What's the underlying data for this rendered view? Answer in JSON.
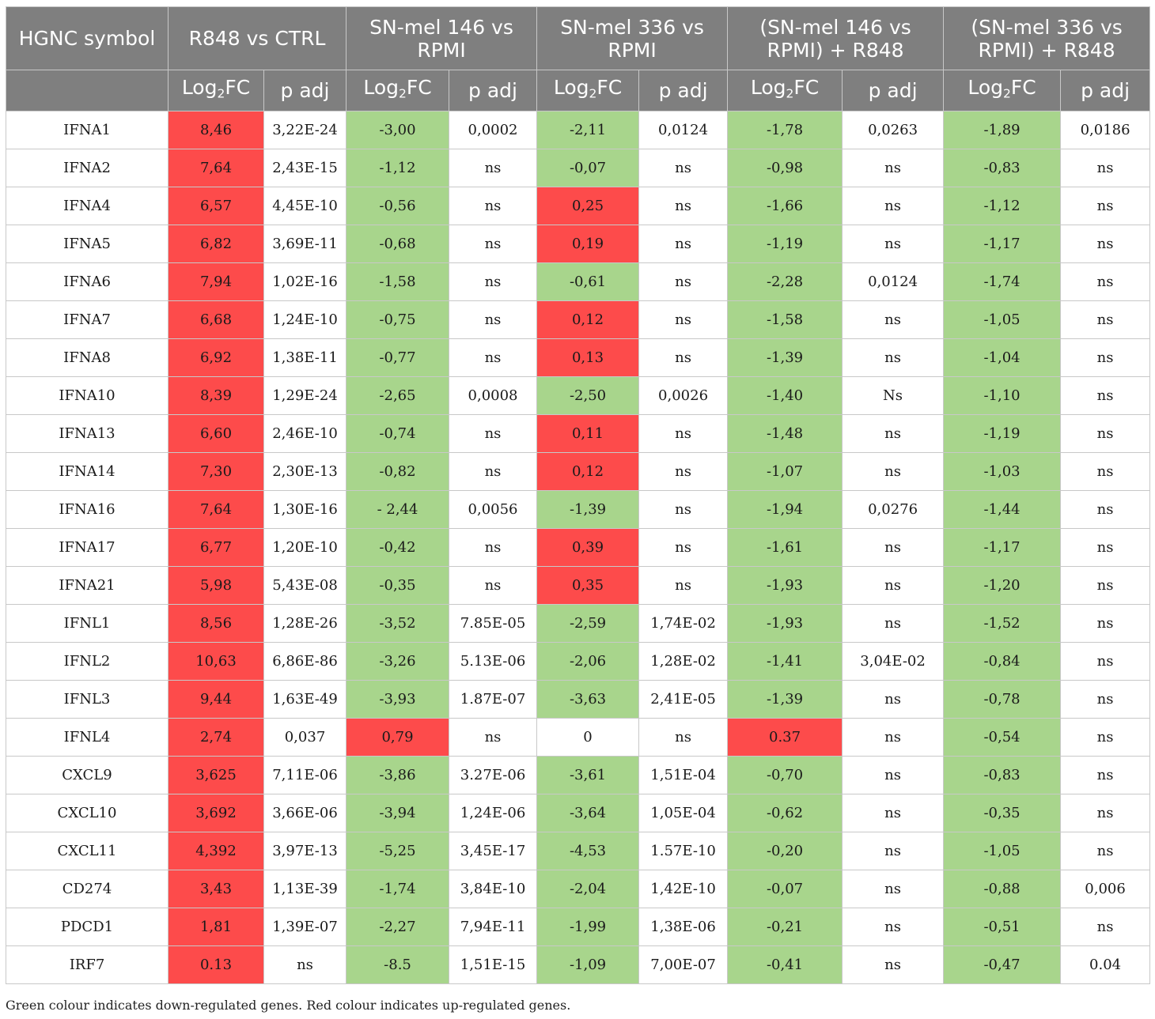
{
  "headers": {
    "symbol": "HGNC symbol",
    "groups": [
      "R848 vs CTRL",
      "SN-mel 146 vs RPMI",
      "SN-mel 336 vs RPMI",
      "(SN-mel 146 vs RPMI) + R848",
      "(SN-mel 336 vs RPMI) + R848"
    ],
    "log2fc_prefix": "Log",
    "log2fc_sub": "2",
    "log2fc_suffix": "FC",
    "padj": "p adj"
  },
  "colors": {
    "up": "#fd4b4b",
    "down": "#a8d58c",
    "header": "#7f7f7f"
  },
  "rows": [
    {
      "symbol": "IFNA1",
      "cells": [
        [
          "8,46",
          "up"
        ],
        [
          "3,22E-24",
          ""
        ],
        [
          "-3,00",
          "down"
        ],
        [
          "0,0002",
          ""
        ],
        [
          "-2,11",
          "down"
        ],
        [
          "0,0124",
          ""
        ],
        [
          "-1,78",
          "down"
        ],
        [
          "0,0263",
          ""
        ],
        [
          "-1,89",
          "down"
        ],
        [
          "0,0186",
          ""
        ]
      ]
    },
    {
      "symbol": "IFNA2",
      "cells": [
        [
          "7,64",
          "up"
        ],
        [
          "2,43E-15",
          ""
        ],
        [
          "-1,12",
          "down"
        ],
        [
          "ns",
          ""
        ],
        [
          "-0,07",
          "down"
        ],
        [
          "ns",
          ""
        ],
        [
          "-0,98",
          "down"
        ],
        [
          "ns",
          ""
        ],
        [
          "-0,83",
          "down"
        ],
        [
          "ns",
          ""
        ]
      ]
    },
    {
      "symbol": "IFNA4",
      "cells": [
        [
          "6,57",
          "up"
        ],
        [
          "4,45E-10",
          ""
        ],
        [
          "-0,56",
          "down"
        ],
        [
          "ns",
          ""
        ],
        [
          "0,25",
          "up"
        ],
        [
          "ns",
          ""
        ],
        [
          "-1,66",
          "down"
        ],
        [
          "ns",
          ""
        ],
        [
          "-1,12",
          "down"
        ],
        [
          "ns",
          ""
        ]
      ]
    },
    {
      "symbol": "IFNA5",
      "cells": [
        [
          "6,82",
          "up"
        ],
        [
          "3,69E-11",
          ""
        ],
        [
          "-0,68",
          "down"
        ],
        [
          "ns",
          ""
        ],
        [
          "0,19",
          "up"
        ],
        [
          "ns",
          ""
        ],
        [
          "-1,19",
          "down"
        ],
        [
          "ns",
          ""
        ],
        [
          "-1,17",
          "down"
        ],
        [
          "ns",
          ""
        ]
      ]
    },
    {
      "symbol": "IFNA6",
      "cells": [
        [
          "7,94",
          "up"
        ],
        [
          "1,02E-16",
          ""
        ],
        [
          "-1,58",
          "down"
        ],
        [
          "ns",
          ""
        ],
        [
          "-0,61",
          "down"
        ],
        [
          "ns",
          ""
        ],
        [
          "-2,28",
          "down"
        ],
        [
          "0,0124",
          ""
        ],
        [
          "-1,74",
          "down"
        ],
        [
          "ns",
          ""
        ]
      ]
    },
    {
      "symbol": "IFNA7",
      "cells": [
        [
          "6,68",
          "up"
        ],
        [
          "1,24E-10",
          ""
        ],
        [
          "-0,75",
          "down"
        ],
        [
          "ns",
          ""
        ],
        [
          "0,12",
          "up"
        ],
        [
          "ns",
          ""
        ],
        [
          "-1,58",
          "down"
        ],
        [
          "ns",
          ""
        ],
        [
          "-1,05",
          "down"
        ],
        [
          "ns",
          ""
        ]
      ]
    },
    {
      "symbol": "IFNA8",
      "cells": [
        [
          "6,92",
          "up"
        ],
        [
          "1,38E-11",
          ""
        ],
        [
          "-0,77",
          "down"
        ],
        [
          "ns",
          ""
        ],
        [
          "0,13",
          "up"
        ],
        [
          "ns",
          ""
        ],
        [
          "-1,39",
          "down"
        ],
        [
          "ns",
          ""
        ],
        [
          "-1,04",
          "down"
        ],
        [
          "ns",
          ""
        ]
      ]
    },
    {
      "symbol": "IFNA10",
      "cells": [
        [
          "8,39",
          "up"
        ],
        [
          "1,29E-24",
          ""
        ],
        [
          "-2,65",
          "down"
        ],
        [
          "0,0008",
          ""
        ],
        [
          "-2,50",
          "down"
        ],
        [
          "0,0026",
          ""
        ],
        [
          "-1,40",
          "down"
        ],
        [
          "Ns",
          ""
        ],
        [
          "-1,10",
          "down"
        ],
        [
          "ns",
          ""
        ]
      ]
    },
    {
      "symbol": "IFNA13",
      "cells": [
        [
          "6,60",
          "up"
        ],
        [
          "2,46E-10",
          ""
        ],
        [
          "-0,74",
          "down"
        ],
        [
          "ns",
          ""
        ],
        [
          "0,11",
          "up"
        ],
        [
          "ns",
          ""
        ],
        [
          "-1,48",
          "down"
        ],
        [
          "ns",
          ""
        ],
        [
          "-1,19",
          "down"
        ],
        [
          "ns",
          ""
        ]
      ]
    },
    {
      "symbol": "IFNA14",
      "cells": [
        [
          "7,30",
          "up"
        ],
        [
          "2,30E-13",
          ""
        ],
        [
          "-0,82",
          "down"
        ],
        [
          "ns",
          ""
        ],
        [
          "0,12",
          "up"
        ],
        [
          "ns",
          ""
        ],
        [
          "-1,07",
          "down"
        ],
        [
          "ns",
          ""
        ],
        [
          "-1,03",
          "down"
        ],
        [
          "ns",
          ""
        ]
      ]
    },
    {
      "symbol": "IFNA16",
      "cells": [
        [
          "7,64",
          "up"
        ],
        [
          "1,30E-16",
          ""
        ],
        [
          "- 2,44",
          "down"
        ],
        [
          "0,0056",
          ""
        ],
        [
          "-1,39",
          "down"
        ],
        [
          "ns",
          ""
        ],
        [
          "-1,94",
          "down"
        ],
        [
          "0,0276",
          ""
        ],
        [
          "-1,44",
          "down"
        ],
        [
          "ns",
          ""
        ]
      ]
    },
    {
      "symbol": "IFNA17",
      "cells": [
        [
          "6,77",
          "up"
        ],
        [
          "1,20E-10",
          ""
        ],
        [
          "-0,42",
          "down"
        ],
        [
          "ns",
          ""
        ],
        [
          "0,39",
          "up"
        ],
        [
          "ns",
          ""
        ],
        [
          "-1,61",
          "down"
        ],
        [
          "ns",
          ""
        ],
        [
          "-1,17",
          "down"
        ],
        [
          "ns",
          ""
        ]
      ]
    },
    {
      "symbol": "IFNA21",
      "cells": [
        [
          "5,98",
          "up"
        ],
        [
          "5,43E-08",
          ""
        ],
        [
          "-0,35",
          "down"
        ],
        [
          "ns",
          ""
        ],
        [
          "0,35",
          "up"
        ],
        [
          "ns",
          ""
        ],
        [
          "-1,93",
          "down"
        ],
        [
          "ns",
          ""
        ],
        [
          "-1,20",
          "down"
        ],
        [
          "ns",
          ""
        ]
      ]
    },
    {
      "symbol": "IFNL1",
      "cells": [
        [
          "8,56",
          "up"
        ],
        [
          "1,28E-26",
          ""
        ],
        [
          "-3,52",
          "down"
        ],
        [
          "7.85E-05",
          ""
        ],
        [
          "-2,59",
          "down"
        ],
        [
          "1,74E-02",
          ""
        ],
        [
          "-1,93",
          "down"
        ],
        [
          "ns",
          ""
        ],
        [
          "-1,52",
          "down"
        ],
        [
          "ns",
          ""
        ]
      ]
    },
    {
      "symbol": "IFNL2",
      "cells": [
        [
          "10,63",
          "up"
        ],
        [
          "6,86E-86",
          ""
        ],
        [
          "-3,26",
          "down"
        ],
        [
          "5.13E-06",
          ""
        ],
        [
          "-2,06",
          "down"
        ],
        [
          "1,28E-02",
          ""
        ],
        [
          "-1,41",
          "down"
        ],
        [
          "3,04E-02",
          ""
        ],
        [
          "-0,84",
          "down"
        ],
        [
          "ns",
          ""
        ]
      ]
    },
    {
      "symbol": "IFNL3",
      "cells": [
        [
          "9,44",
          "up"
        ],
        [
          "1,63E-49",
          ""
        ],
        [
          "-3,93",
          "down"
        ],
        [
          "1.87E-07",
          ""
        ],
        [
          "-3,63",
          "down"
        ],
        [
          "2,41E-05",
          ""
        ],
        [
          "-1,39",
          "down"
        ],
        [
          "ns",
          ""
        ],
        [
          "-0,78",
          "down"
        ],
        [
          "ns",
          ""
        ]
      ]
    },
    {
      "symbol": "IFNL4",
      "cells": [
        [
          "2,74",
          "up"
        ],
        [
          "0,037",
          ""
        ],
        [
          "0,79",
          "up"
        ],
        [
          "ns",
          ""
        ],
        [
          "0",
          ""
        ],
        [
          "ns",
          ""
        ],
        [
          "0.37",
          "up"
        ],
        [
          "ns",
          ""
        ],
        [
          "-0,54",
          "down"
        ],
        [
          "ns",
          ""
        ]
      ]
    },
    {
      "symbol": "CXCL9",
      "cells": [
        [
          "3,625",
          "up"
        ],
        [
          "7,11E-06",
          ""
        ],
        [
          "-3,86",
          "down"
        ],
        [
          "3.27E-06",
          ""
        ],
        [
          "-3,61",
          "down"
        ],
        [
          "1,51E-04",
          ""
        ],
        [
          "-0,70",
          "down"
        ],
        [
          "ns",
          ""
        ],
        [
          "-0,83",
          "down"
        ],
        [
          "ns",
          ""
        ]
      ]
    },
    {
      "symbol": "CXCL10",
      "cells": [
        [
          "3,692",
          "up"
        ],
        [
          "3,66E-06",
          ""
        ],
        [
          "-3,94",
          "down"
        ],
        [
          "1,24E-06",
          ""
        ],
        [
          "-3,64",
          "down"
        ],
        [
          "1,05E-04",
          ""
        ],
        [
          "-0,62",
          "down"
        ],
        [
          "ns",
          ""
        ],
        [
          "-0,35",
          "down"
        ],
        [
          "ns",
          ""
        ]
      ]
    },
    {
      "symbol": "CXCL11",
      "cells": [
        [
          "4,392",
          "up"
        ],
        [
          "3,97E-13",
          ""
        ],
        [
          "-5,25",
          "down"
        ],
        [
          "3,45E-17",
          ""
        ],
        [
          "-4,53",
          "down"
        ],
        [
          "1.57E-10",
          ""
        ],
        [
          "-0,20",
          "down"
        ],
        [
          "ns",
          ""
        ],
        [
          "-1,05",
          "down"
        ],
        [
          "ns",
          ""
        ]
      ]
    },
    {
      "symbol": "CD274",
      "cells": [
        [
          "3,43",
          "up"
        ],
        [
          "1,13E-39",
          ""
        ],
        [
          "-1,74",
          "down"
        ],
        [
          "3,84E-10",
          ""
        ],
        [
          "-2,04",
          "down"
        ],
        [
          "1,42E-10",
          ""
        ],
        [
          "-0,07",
          "down"
        ],
        [
          "ns",
          ""
        ],
        [
          "-0,88",
          "down"
        ],
        [
          "0,006",
          ""
        ]
      ]
    },
    {
      "symbol": "PDCD1",
      "cells": [
        [
          "1,81",
          "up"
        ],
        [
          "1,39E-07",
          ""
        ],
        [
          "-2,27",
          "down"
        ],
        [
          "7,94E-11",
          ""
        ],
        [
          "-1,99",
          "down"
        ],
        [
          "1,38E-06",
          ""
        ],
        [
          "-0,21",
          "down"
        ],
        [
          "ns",
          ""
        ],
        [
          "-0,51",
          "down"
        ],
        [
          "ns",
          ""
        ]
      ]
    },
    {
      "symbol": "IRF7",
      "cells": [
        [
          "0.13",
          "up"
        ],
        [
          "ns",
          ""
        ],
        [
          "-8.5",
          "down"
        ],
        [
          "1,51E-15",
          ""
        ],
        [
          "-1,09",
          "down"
        ],
        [
          "7,00E-07",
          ""
        ],
        [
          "-0,41",
          "down"
        ],
        [
          "ns",
          ""
        ],
        [
          "-0,47",
          "down"
        ],
        [
          "0.04",
          ""
        ]
      ]
    }
  ],
  "footnote": "Green colour indicates down-regulated genes. Red colour indicates up-regulated genes."
}
